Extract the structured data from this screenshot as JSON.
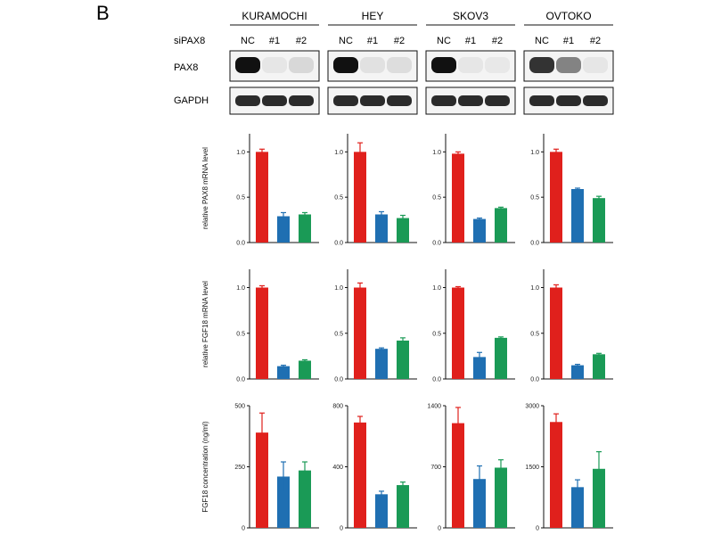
{
  "panel_label": "B",
  "sirna_label": "siPAX8",
  "conditions": [
    "NC",
    "#1",
    "#2"
  ],
  "blot_rows": [
    "PAX8",
    "GAPDH"
  ],
  "colors": {
    "NC": "#e0201c",
    "#1": "#1f6fb2",
    "#2": "#1a9a56"
  },
  "chart_data": [
    {
      "type": "bar",
      "cell_line": "KURAMOCHI",
      "categories": [
        "NC",
        "#1",
        "#2"
      ],
      "values": [
        1.0,
        0.29,
        0.31
      ],
      "errors": [
        0.03,
        0.04,
        0.02
      ],
      "ylabel": "relative PAX8 mRNA level",
      "ylim": [
        0,
        1.2
      ],
      "yticks": [
        "0.0",
        "0.5",
        "1.0"
      ]
    },
    {
      "type": "bar",
      "cell_line": "HEY",
      "categories": [
        "NC",
        "#1",
        "#2"
      ],
      "values": [
        1.0,
        0.31,
        0.27
      ],
      "errors": [
        0.1,
        0.03,
        0.03
      ],
      "ylabel": "",
      "ylim": [
        0,
        1.2
      ],
      "yticks": [
        "0.0",
        "0.5",
        "1.0"
      ]
    },
    {
      "type": "bar",
      "cell_line": "SKOV3",
      "categories": [
        "NC",
        "#1",
        "#2"
      ],
      "values": [
        0.98,
        0.26,
        0.38
      ],
      "errors": [
        0.02,
        0.01,
        0.01
      ],
      "ylabel": "",
      "ylim": [
        0,
        1.2
      ],
      "yticks": [
        "0.0",
        "0.5",
        "1.0"
      ]
    },
    {
      "type": "bar",
      "cell_line": "OVTOKO",
      "categories": [
        "NC",
        "#1",
        "#2"
      ],
      "values": [
        1.0,
        0.59,
        0.49
      ],
      "errors": [
        0.03,
        0.01,
        0.02
      ],
      "ylabel": "",
      "ylim": [
        0,
        1.2
      ],
      "yticks": [
        "0.0",
        "0.5",
        "1.0"
      ]
    },
    {
      "type": "bar",
      "cell_line": "KURAMOCHI",
      "categories": [
        "NC",
        "#1",
        "#2"
      ],
      "values": [
        1.0,
        0.14,
        0.2
      ],
      "errors": [
        0.02,
        0.01,
        0.01
      ],
      "ylabel": "relative FGF18 mRNA level",
      "ylim": [
        0,
        1.2
      ],
      "yticks": [
        "0.0",
        "0.5",
        "1.0"
      ]
    },
    {
      "type": "bar",
      "cell_line": "HEY",
      "categories": [
        "NC",
        "#1",
        "#2"
      ],
      "values": [
        1.0,
        0.33,
        0.42
      ],
      "errors": [
        0.05,
        0.01,
        0.03
      ],
      "ylabel": "",
      "ylim": [
        0,
        1.2
      ],
      "yticks": [
        "0.0",
        "0.5",
        "1.0"
      ]
    },
    {
      "type": "bar",
      "cell_line": "SKOV3",
      "categories": [
        "NC",
        "#1",
        "#2"
      ],
      "values": [
        1.0,
        0.24,
        0.45
      ],
      "errors": [
        0.01,
        0.05,
        0.01
      ],
      "ylabel": "",
      "ylim": [
        0,
        1.2
      ],
      "yticks": [
        "0.0",
        "0.5",
        "1.0"
      ]
    },
    {
      "type": "bar",
      "cell_line": "OVTOKO",
      "categories": [
        "NC",
        "#1",
        "#2"
      ],
      "values": [
        1.0,
        0.15,
        0.27
      ],
      "errors": [
        0.03,
        0.01,
        0.01
      ],
      "ylabel": "",
      "ylim": [
        0,
        1.2
      ],
      "yticks": [
        "0.0",
        "0.5",
        "1.0"
      ]
    },
    {
      "type": "bar",
      "cell_line": "KURAMOCHI",
      "categories": [
        "NC",
        "#1",
        "#2"
      ],
      "values": [
        390,
        210,
        235
      ],
      "errors": [
        80,
        60,
        35
      ],
      "ylabel": "FGF18 concentration (ng/ml)",
      "ylim": [
        0,
        500
      ],
      "yticks": [
        "0",
        "250",
        "500"
      ]
    },
    {
      "type": "bar",
      "cell_line": "HEY",
      "categories": [
        "NC",
        "#1",
        "#2"
      ],
      "values": [
        690,
        220,
        280
      ],
      "errors": [
        40,
        20,
        20
      ],
      "ylabel": "",
      "ylim": [
        0,
        800
      ],
      "yticks": [
        "0",
        "400",
        "800"
      ]
    },
    {
      "type": "bar",
      "cell_line": "SKOV3",
      "categories": [
        "NC",
        "#1",
        "#2"
      ],
      "values": [
        1200,
        560,
        690
      ],
      "errors": [
        180,
        150,
        90
      ],
      "ylabel": "",
      "ylim": [
        0,
        1400
      ],
      "yticks": [
        "0",
        "700",
        "1400"
      ]
    },
    {
      "type": "bar",
      "cell_line": "OVTOKO",
      "categories": [
        "NC",
        "#1",
        "#2"
      ],
      "values": [
        2600,
        1000,
        1450
      ],
      "errors": [
        200,
        180,
        420
      ],
      "ylabel": "",
      "ylim": [
        0,
        3000
      ],
      "yticks": [
        "0",
        "1500",
        "3000"
      ]
    }
  ]
}
